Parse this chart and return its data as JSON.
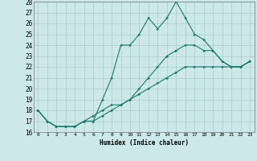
{
  "title": "",
  "xlabel": "Humidex (Indice chaleur)",
  "ylabel": "",
  "bg_color": "#cce8e8",
  "grid_color": "#aacccc",
  "line_color": "#1a7a6e",
  "xlim": [
    -0.5,
    23.5
  ],
  "ylim": [
    16,
    28
  ],
  "xticks": [
    0,
    1,
    2,
    3,
    4,
    5,
    6,
    7,
    8,
    9,
    10,
    11,
    12,
    13,
    14,
    15,
    16,
    17,
    18,
    19,
    20,
    21,
    22,
    23
  ],
  "yticks": [
    16,
    17,
    18,
    19,
    20,
    21,
    22,
    23,
    24,
    25,
    26,
    27,
    28
  ],
  "series": [
    [
      18,
      17,
      16.5,
      16.5,
      16.5,
      17,
      17,
      19,
      21,
      24,
      24,
      25,
      26.5,
      25.5,
      26.5,
      28,
      26.5,
      25,
      24.5,
      23.5,
      22.5,
      22,
      22,
      22.5
    ],
    [
      18,
      17,
      16.5,
      16.5,
      16.5,
      17,
      17.5,
      18,
      18.5,
      18.5,
      19,
      20,
      21,
      22,
      23,
      23.5,
      24,
      24,
      23.5,
      23.5,
      22.5,
      22,
      22,
      22.5
    ],
    [
      18,
      17,
      16.5,
      16.5,
      16.5,
      17,
      17,
      17.5,
      18,
      18.5,
      19,
      19.5,
      20,
      20.5,
      21,
      21.5,
      22,
      22,
      22,
      22,
      22,
      22,
      22,
      22.5
    ]
  ]
}
